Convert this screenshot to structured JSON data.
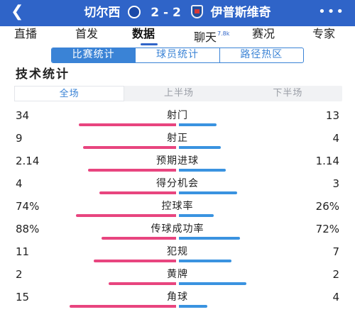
{
  "header": {
    "back_icon": "chevron-left-icon",
    "home_team": "切尔西",
    "score": "2 - 2",
    "away_team": "伊普斯维奇",
    "more_icon": "more-dots-icon",
    "home_crest_icon": "chelsea-crest-icon",
    "away_crest_icon": "ipswich-crest-icon"
  },
  "nav_tabs": [
    {
      "label": "直播",
      "active": false
    },
    {
      "label": "首发",
      "active": false
    },
    {
      "label": "数据",
      "active": true
    },
    {
      "label": "聊天",
      "badge": "7.8k",
      "active": false
    },
    {
      "label": "赛况",
      "active": false
    },
    {
      "label": "专家",
      "active": false
    }
  ],
  "sub_tabs": [
    {
      "label": "比赛统计",
      "active": true
    },
    {
      "label": "球员统计",
      "active": false
    },
    {
      "label": "路径热区",
      "active": false
    }
  ],
  "section_title": "技术统计",
  "period_tabs": [
    {
      "label": "全场",
      "active": true
    },
    {
      "label": "上半场",
      "active": false
    },
    {
      "label": "下半场",
      "active": false
    }
  ],
  "colors": {
    "header_bg": "#2f64c8",
    "home_bar": "#e8457f",
    "away_bar": "#3a93e0",
    "accent": "#3a83d6"
  },
  "stats": [
    {
      "label": "射门",
      "home": "34",
      "away": "13",
      "home_share": 0.723,
      "away_share": 0.277
    },
    {
      "label": "射正",
      "home": "9",
      "away": "4",
      "home_share": 0.692,
      "away_share": 0.308
    },
    {
      "label": "预期进球",
      "home": "2.14",
      "away": "1.14",
      "home_share": 0.652,
      "away_share": 0.348
    },
    {
      "label": "得分机会",
      "home": "4",
      "away": "3",
      "home_share": 0.571,
      "away_share": 0.429
    },
    {
      "label": "控球率",
      "home": "74%",
      "away": "26%",
      "home_share": 0.74,
      "away_share": 0.26
    },
    {
      "label": "传球成功率",
      "home": "88%",
      "away": "72%",
      "home_share": 0.55,
      "away_share": 0.45
    },
    {
      "label": "犯规",
      "home": "11",
      "away": "7",
      "home_share": 0.611,
      "away_share": 0.389
    },
    {
      "label": "黄牌",
      "home": "2",
      "away": "2",
      "home_share": 0.5,
      "away_share": 0.5
    },
    {
      "label": "角球",
      "home": "15",
      "away": "4",
      "home_share": 0.789,
      "away_share": 0.211
    }
  ]
}
